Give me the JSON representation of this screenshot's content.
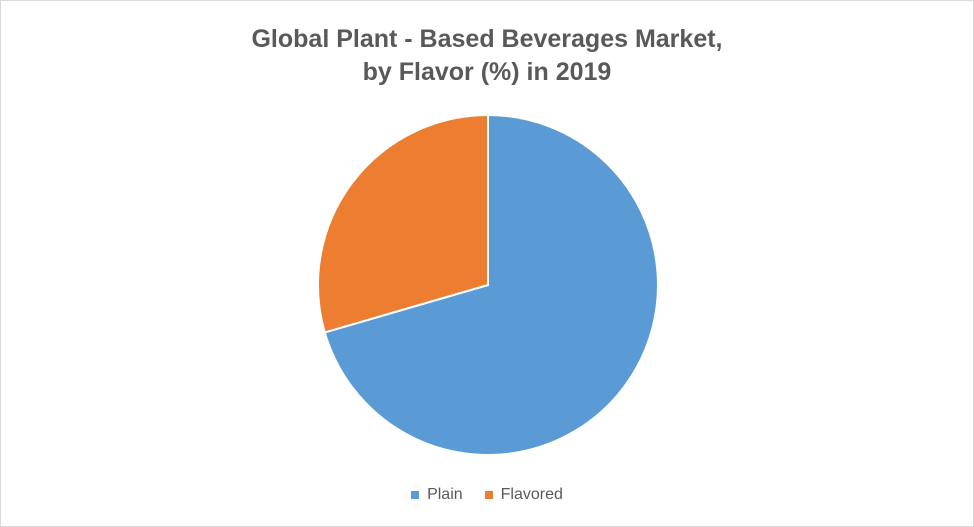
{
  "chart_data": {
    "type": "pie",
    "title_lines": [
      "Global Plant - Based Beverages Market,",
      "by Flavor (%) in 2019"
    ],
    "categories": [
      "Plain",
      "Flavored"
    ],
    "values": [
      70.5,
      29.5
    ],
    "colors": [
      "#5b9bd5",
      "#ed7d31"
    ],
    "legend_position": "bottom"
  }
}
